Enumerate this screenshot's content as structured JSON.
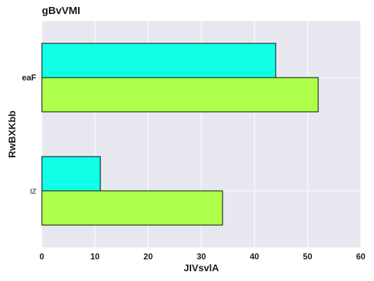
{
  "chart_data": {
    "type": "bar",
    "orientation": "horizontal",
    "title": "gBvVMI",
    "xlabel": "JIVsvlA",
    "ylabel": "RwBXKbb",
    "categories": [
      "tZ",
      "eaF"
    ],
    "series": [
      {
        "values": [
          34,
          52
        ],
        "color": "#adff4a"
      },
      {
        "values": [
          11,
          44
        ],
        "color": "#10ffe6"
      }
    ],
    "xlim": [
      0,
      60
    ],
    "xticks": [
      0,
      10,
      20,
      30,
      40,
      50,
      60
    ],
    "grid": true,
    "background": "#e8e8f0"
  }
}
